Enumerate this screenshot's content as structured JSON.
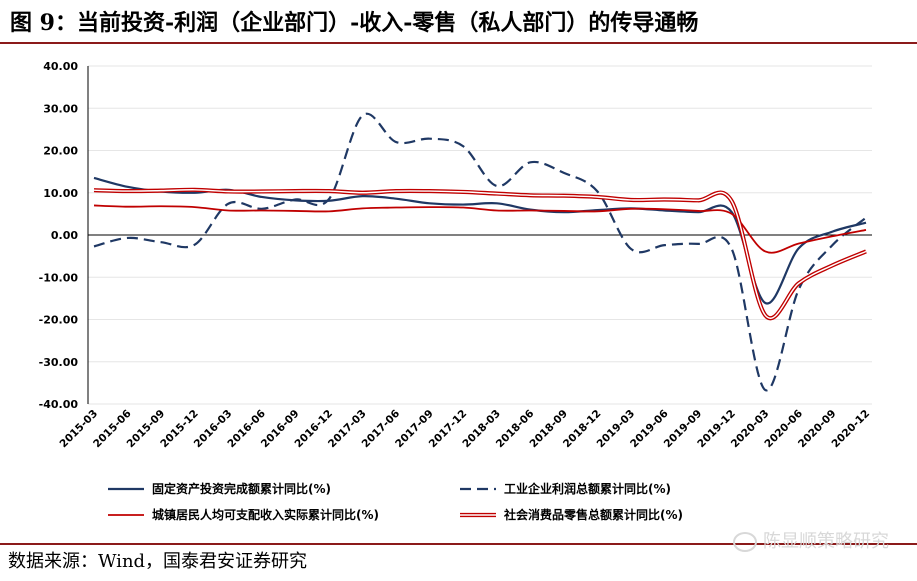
{
  "header": {
    "title": "图 9：当前投资-利润（企业部门）-收入-零售（私人部门）的传导通畅"
  },
  "footer": {
    "source": "数据来源：Wind，国泰君安证券研究"
  },
  "watermark": {
    "text": "陈显顺策略研究",
    "icon": "wechat-icon"
  },
  "colors": {
    "navy": "#1f3864",
    "red": "#c00000",
    "frame": "#8b1a1a",
    "grid": "#e6e6e6"
  },
  "chart_data": {
    "type": "line",
    "title": "",
    "xlabel": "",
    "ylabel": "",
    "ylim": [
      -40,
      40
    ],
    "yticks": [
      "40.00",
      "30.00",
      "20.00",
      "10.00",
      "0.00",
      "-10.00",
      "-20.00",
      "-30.00",
      "-40.00"
    ],
    "ytick_values": [
      40,
      30,
      20,
      10,
      0,
      -10,
      -20,
      -30,
      -40
    ],
    "x_labels": [
      "2015-03",
      "2015-06",
      "2015-09",
      "2015-12",
      "2016-03",
      "2016-06",
      "2016-09",
      "2016-12",
      "2017-03",
      "2017-06",
      "2017-09",
      "2017-12",
      "2018-03",
      "2018-06",
      "2018-09",
      "2018-12",
      "2019-03",
      "2019-06",
      "2019-09",
      "2019-12",
      "2020-03",
      "2020-06",
      "2020-09",
      "2020-12"
    ],
    "grid": true,
    "legend_position": "bottom",
    "series": [
      {
        "name": "固定资产投资完成额累计同比(%)",
        "color": "#1f3864",
        "style": "solid",
        "width": 2.2,
        "values": [
          13.5,
          11.4,
          10.3,
          10.0,
          10.7,
          9.0,
          8.2,
          8.1,
          9.2,
          8.6,
          7.5,
          7.2,
          7.5,
          6.0,
          5.4,
          5.9,
          6.3,
          5.8,
          5.4,
          5.4,
          -16.1,
          -3.1,
          0.8,
          2.9
        ]
      },
      {
        "name": "工业企业利润总额累计同比(%)",
        "color": "#1f3864",
        "style": "dashed",
        "width": 2.2,
        "values": [
          -2.7,
          -0.7,
          -1.7,
          -2.3,
          7.4,
          6.2,
          8.4,
          8.5,
          28.3,
          22.0,
          22.8,
          21.0,
          11.6,
          17.2,
          14.7,
          10.3,
          -3.3,
          -2.4,
          -2.1,
          -3.3,
          -36.7,
          -12.8,
          -2.4,
          4.1
        ]
      },
      {
        "name": "城镇居民人均可支配收入实际累计同比(%)",
        "color": "#c00000",
        "style": "solid",
        "width": 1.8,
        "values": [
          7.0,
          6.7,
          6.8,
          6.6,
          5.8,
          5.8,
          5.7,
          5.6,
          6.3,
          6.5,
          6.6,
          6.5,
          5.8,
          5.8,
          5.7,
          5.6,
          6.2,
          6.1,
          5.7,
          5.0,
          -3.9,
          -2.0,
          -0.3,
          1.2
        ]
      },
      {
        "name": "社会消费品零售总额累计同比(%)",
        "color": "#c00000",
        "style": "double",
        "width": 1.6,
        "values": [
          10.6,
          10.4,
          10.5,
          10.7,
          10.3,
          10.3,
          10.4,
          10.4,
          10.0,
          10.4,
          10.4,
          10.2,
          9.8,
          9.4,
          9.3,
          9.0,
          8.3,
          8.4,
          8.2,
          8.0,
          -19.0,
          -11.4,
          -7.2,
          -3.9
        ]
      }
    ]
  }
}
